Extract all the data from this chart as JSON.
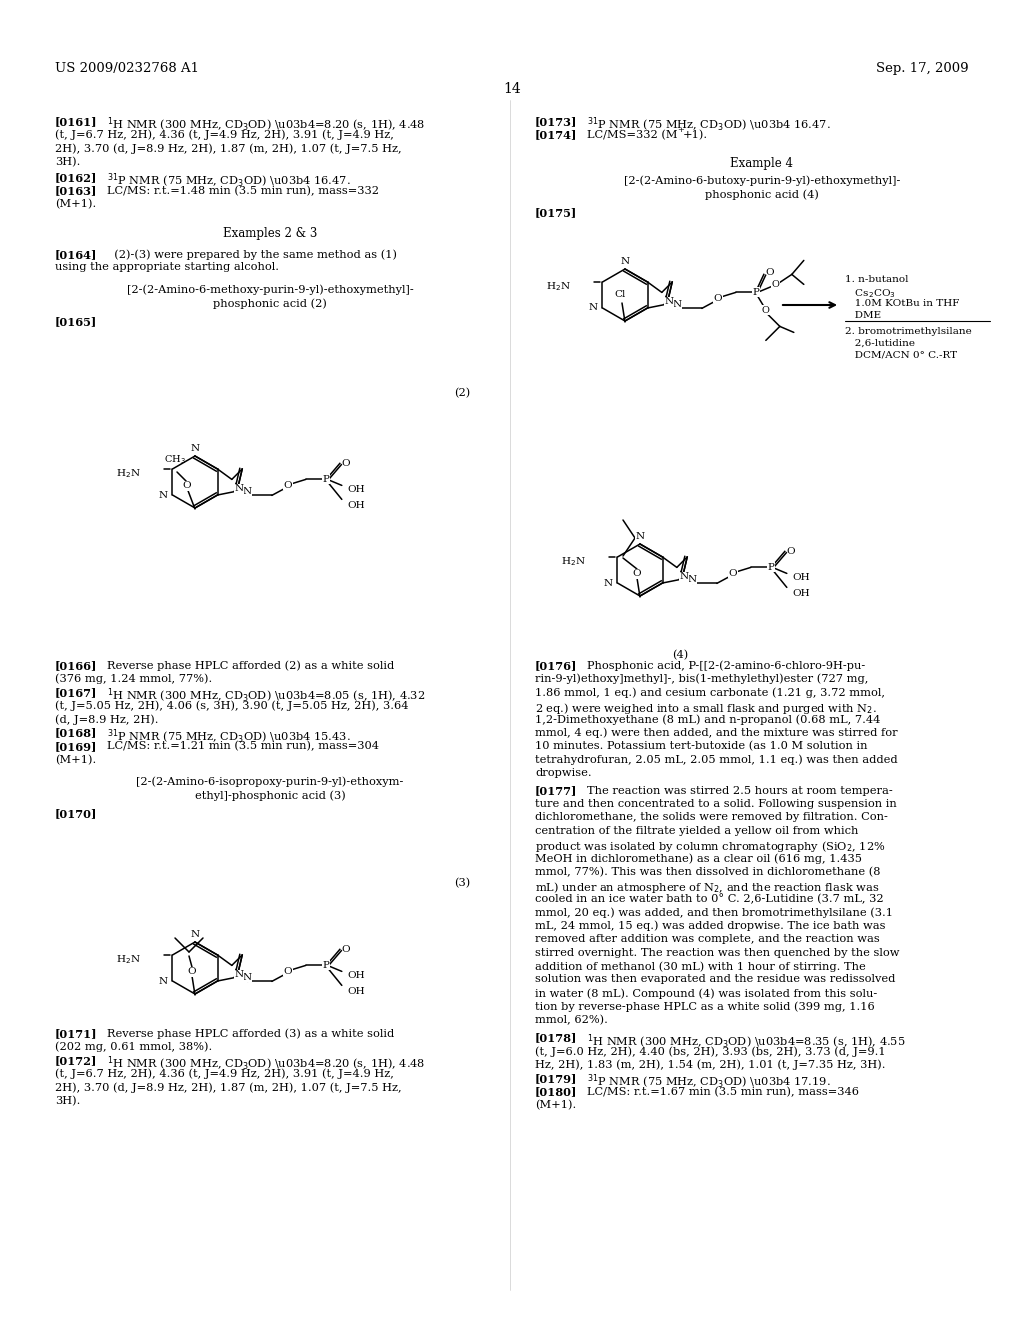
{
  "header_left": "US 2009/0232768 A1",
  "header_right": "Sep. 17, 2009",
  "page_number": "14",
  "bg_color": "#ffffff",
  "text_color": "#000000"
}
